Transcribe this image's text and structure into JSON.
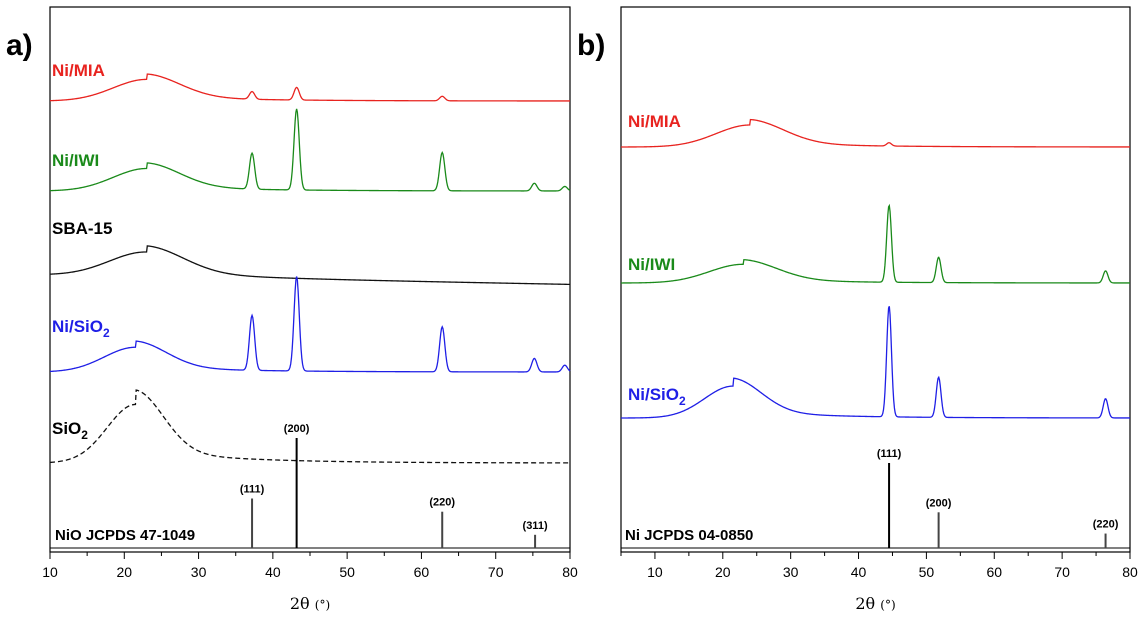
{
  "chart_data": [
    {
      "panel": "a)",
      "type": "line",
      "xlabel_base": "2θ",
      "xlabel_unit": "(°)",
      "xlim": [
        10,
        80
      ],
      "xticks": [
        10,
        20,
        30,
        40,
        50,
        60,
        70,
        80
      ],
      "series": [
        {
          "name": "Ni/MIA",
          "color": "#e8231f",
          "style": "solid",
          "baseline": 0.98,
          "bump_center": 23,
          "bump_height": 0.48,
          "bump_width": 4.5,
          "slope": 0,
          "peaks": [
            [
              37.2,
              0.17
            ],
            [
              43.2,
              0.28
            ],
            [
              62.8,
              0.1
            ]
          ]
        },
        {
          "name": "Ni/IWI",
          "color": "#1a8a1a",
          "style": "solid",
          "baseline": 0.98,
          "bump_center": 23,
          "bump_height": 0.5,
          "bump_width": 4.5,
          "slope": 0,
          "peaks": [
            [
              37.2,
              0.8
            ],
            [
              43.2,
              1.8
            ],
            [
              62.8,
              0.85
            ],
            [
              75.2,
              0.17
            ],
            [
              79.3,
              0.1
            ]
          ]
        },
        {
          "name": "SBA-15",
          "color": "#111111",
          "style": "solid",
          "baseline": 0.98,
          "bump_center": 23,
          "bump_height": 0.55,
          "bump_width": 5,
          "slope": -0.003,
          "peaks": []
        },
        {
          "name": "Ni/SiO",
          "name_sub": "2",
          "color": "#1f1fe6",
          "style": "solid",
          "baseline": 0.98,
          "bump_center": 21.5,
          "bump_height": 0.55,
          "bump_width": 4.2,
          "slope": 0,
          "peaks": [
            [
              37.2,
              1.22
            ],
            [
              43.2,
              2.1
            ],
            [
              62.8,
              1.0
            ],
            [
              75.2,
              0.3
            ],
            [
              79.3,
              0.15
            ]
          ]
        },
        {
          "name": "SiO",
          "name_sub": "2",
          "color": "#111111",
          "style": "dashed",
          "baseline": 0.98,
          "bump_center": 21.5,
          "bump_height": 1.3,
          "bump_width": 3.8,
          "slope": 0,
          "peaks": []
        }
      ],
      "reference": {
        "name": "NiO JCPDS 47-1049",
        "lines": [
          {
            "x": 37.2,
            "h": 0.45,
            "label": "(111)"
          },
          {
            "x": 43.2,
            "h": 1.0,
            "label": "(200)"
          },
          {
            "x": 62.8,
            "h": 0.33,
            "label": "(220)"
          },
          {
            "x": 75.3,
            "h": 0.12,
            "label": "(311)"
          }
        ]
      }
    },
    {
      "panel": "b)",
      "type": "line",
      "xlabel_base": "2θ",
      "xlabel_unit": "(°)",
      "xlim": [
        5,
        80
      ],
      "xticks": [
        10,
        20,
        30,
        40,
        50,
        60,
        70,
        80
      ],
      "series": [
        {
          "name": "Ni/MIA",
          "color": "#e8231f",
          "style": "solid",
          "baseline": 0.98,
          "bump_center": 24,
          "bump_height": 0.4,
          "bump_width": 5,
          "slope": 0,
          "peaks": [
            [
              44.5,
              0.06
            ]
          ]
        },
        {
          "name": "Ni/IWI",
          "color": "#1a8a1a",
          "style": "solid",
          "baseline": 0.98,
          "bump_center": 23,
          "bump_height": 0.34,
          "bump_width": 5,
          "slope": 0,
          "peaks": [
            [
              44.5,
              1.4
            ],
            [
              51.8,
              0.46
            ],
            [
              76.4,
              0.22
            ]
          ]
        },
        {
          "name": "Ni/SiO",
          "name_sub": "2",
          "color": "#1f1fe6",
          "style": "solid",
          "baseline": 0.98,
          "bump_center": 21.5,
          "bump_height": 0.58,
          "bump_width": 4.2,
          "slope": 0,
          "peaks": [
            [
              44.5,
              2.02
            ],
            [
              51.8,
              0.73
            ],
            [
              76.4,
              0.35
            ]
          ]
        }
      ],
      "reference": {
        "name": "Ni JCPDS 04-0850",
        "lines": [
          {
            "x": 44.5,
            "h": 1.0,
            "label": "(111)"
          },
          {
            "x": 51.8,
            "h": 0.42,
            "label": "(200)"
          },
          {
            "x": 76.4,
            "h": 0.17,
            "label": "(220)"
          }
        ]
      }
    }
  ]
}
